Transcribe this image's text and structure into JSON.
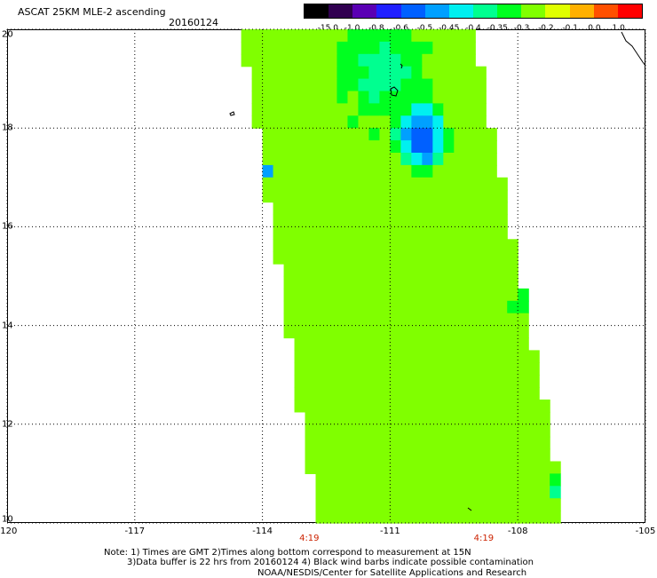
{
  "header": {
    "title": "ASCAT 25KM MLE-2 ascending",
    "date": "20160124"
  },
  "colorbar": {
    "labels": [
      "-15.0",
      "-1.0",
      "-0.8",
      "-0.6",
      "-0.5",
      "-0.45",
      "-0.4",
      "-0.35",
      "-0.3",
      "-0.2",
      "-0.1",
      "0.0",
      "1.0"
    ],
    "colors": [
      "#000000",
      "#300050",
      "#5a00b4",
      "#2020ff",
      "#0060ff",
      "#00a0ff",
      "#00f0f0",
      "#00ff90",
      "#00ff20",
      "#80ff00",
      "#e0ff00",
      "#ffb000",
      "#ff5000",
      "#ff0000"
    ]
  },
  "axes": {
    "x_ticks": [
      "-120",
      "-117",
      "-114",
      "-111",
      "-108",
      "-105"
    ],
    "y_ticks": [
      "20",
      "18",
      "16",
      "14",
      "12",
      "10"
    ],
    "lon_range": [
      -120,
      -105
    ],
    "lat_range": [
      10,
      20
    ],
    "grid": "dotted"
  },
  "times": [
    {
      "label": "4:19",
      "lon": -112.9
    },
    {
      "label": "4:19",
      "lon": -108.8
    }
  ],
  "swath": {
    "lon_left_top": -114.4,
    "lon_right_top": -109.2,
    "lon_left_bottom": -112.6,
    "lon_right_bottom": -107.0,
    "base_value": -0.3,
    "features": [
      {
        "lon": -110.4,
        "lat": 17.6,
        "value": -0.6,
        "radius_deg": 0.8
      },
      {
        "lon": -110.3,
        "lat": 18.1,
        "value": -0.5,
        "radius_deg": 0.5
      },
      {
        "lon": -111.3,
        "lat": 19.0,
        "value": -0.4,
        "radius_deg": 1.4
      },
      {
        "lon": -107.8,
        "lat": 14.5,
        "value": -0.4,
        "radius_deg": 0.6
      },
      {
        "lon": -107.2,
        "lat": 10.6,
        "value": -0.45,
        "radius_deg": 0.3
      },
      {
        "lon": -114.0,
        "lat": 17.0,
        "value": -0.5,
        "radius_deg": 0.15
      }
    ]
  },
  "notes": [
    "Note: 1) Times are GMT 2)Times along bottom correspond to measurement at 15N",
    "3)Data buffer is 22 hrs from 20160124 4) Black wind barbs indicate possible contamination",
    "NOAA/NESDIS/Center for Satellite Applications and Research"
  ]
}
